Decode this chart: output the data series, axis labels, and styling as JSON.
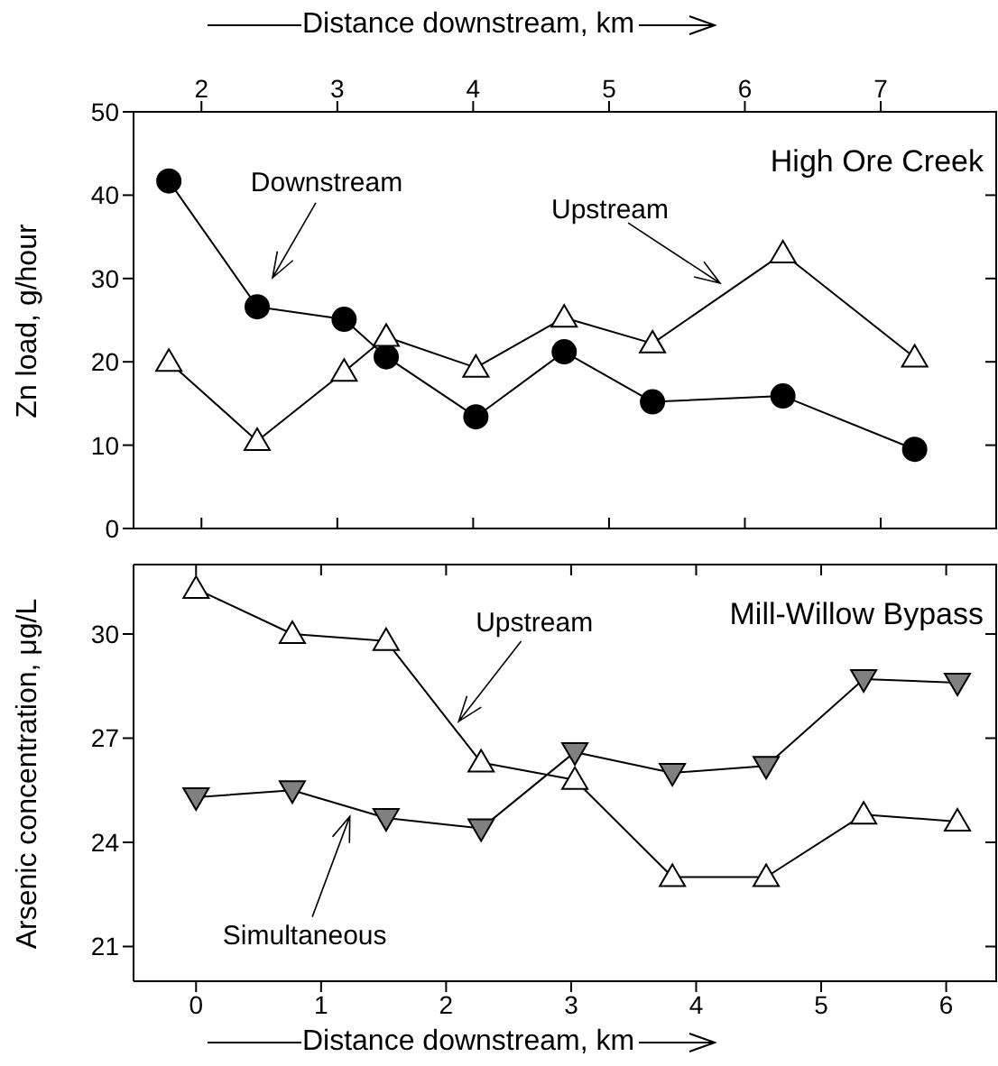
{
  "chart_data": [
    {
      "type": "line",
      "title": "High Ore Creek",
      "xlabel": "Distance downstream, km",
      "ylabel": "Zn load, g/hour",
      "xlim": [
        1.5,
        7.85
      ],
      "xticks": [
        2,
        3,
        4,
        5,
        6,
        7
      ],
      "ylim": [
        0,
        50
      ],
      "yticks": [
        0,
        10,
        20,
        30,
        40,
        50
      ],
      "grid": false,
      "legend": false,
      "line_style": "solid",
      "series": [
        {
          "color": "#000000",
          "marker": "circle",
          "x": [
            1.76,
            2.41,
            3.05,
            3.36,
            4.02,
            4.67,
            5.32,
            6.28,
            7.25
          ],
          "values": [
            41.7,
            26.6,
            25.1,
            20.6,
            13.4,
            21.2,
            15.2,
            15.9,
            9.5
          ]
        },
        {
          "color": "#ffffff",
          "marker": "triangle",
          "x": [
            1.76,
            2.41,
            3.05,
            3.36,
            4.02,
            4.67,
            5.32,
            6.28,
            7.25
          ],
          "values": [
            20,
            10.5,
            18.8,
            23,
            19.3,
            25.3,
            22.2,
            33,
            20.5
          ]
        }
      ],
      "annotations": [
        "Downstream",
        "Upstream"
      ]
    },
    {
      "type": "line",
      "title": "Mill-Willow Bypass",
      "xlabel": "Distance downstream, km",
      "ylabel": "Arsenic concentration, μg/L",
      "xlim": [
        -0.5,
        6.4
      ],
      "xticks": [
        0,
        1,
        2,
        3,
        4,
        5,
        6
      ],
      "ylim": [
        20,
        32
      ],
      "yticks": [
        21,
        24,
        27,
        30
      ],
      "grid": false,
      "legend": false,
      "line_style": "solid",
      "series": [
        {
          "color": "#ffffff",
          "marker": "triangle",
          "x": [
            0,
            0.77,
            1.52,
            2.28,
            3.03,
            3.81,
            4.56,
            5.34,
            6.09
          ],
          "values": [
            31.3,
            30,
            29.8,
            26.3,
            25.8,
            23,
            23,
            24.8,
            24.6
          ]
        },
        {
          "color": "#808080",
          "marker": "triangle-down",
          "x": [
            0,
            0.77,
            1.52,
            2.28,
            3.03,
            3.81,
            4.56,
            5.34,
            6.09
          ],
          "values": [
            25.3,
            25.5,
            24.7,
            24.4,
            26.6,
            26,
            26.2,
            28.7,
            28.6
          ]
        }
      ],
      "annotations": [
        {
          "text": "Upstream",
          "x": 2.1,
          "y": 27.48
        },
        {
          "text": "Simultaneous",
          "x": 1.23,
          "y": 24.75
        }
      ]
    }
  ]
}
